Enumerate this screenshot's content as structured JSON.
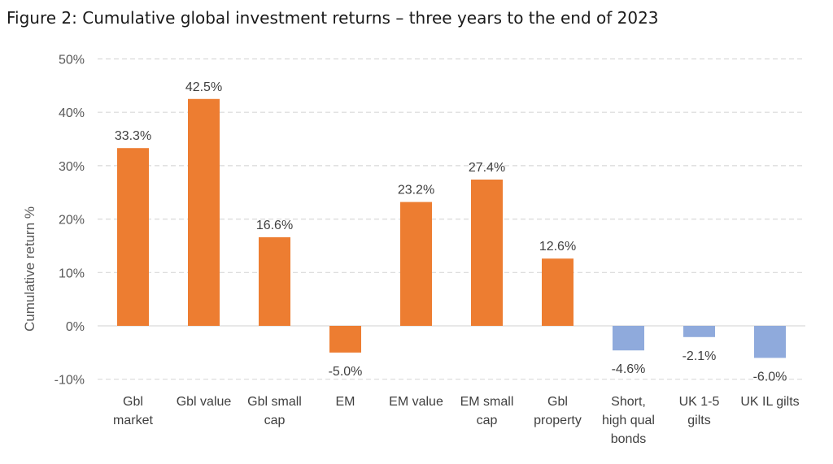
{
  "chart_data": {
    "type": "bar",
    "title": "Figure 2: Cumulative global investment returns – three years to the end of 2023",
    "ylabel": "Cumulative return %",
    "xlabel": "",
    "ylim": [
      -10,
      50
    ],
    "yticks": [
      -10,
      0,
      10,
      20,
      30,
      40,
      50
    ],
    "ytick_labels": [
      "-10%",
      "0%",
      "10%",
      "20%",
      "30%",
      "40%",
      "50%"
    ],
    "grid": true,
    "categories": [
      [
        "Gbl",
        "market"
      ],
      [
        "Gbl value"
      ],
      [
        "Gbl small",
        "cap"
      ],
      [
        "EM"
      ],
      [
        "EM value"
      ],
      [
        "EM small",
        "cap"
      ],
      [
        "Gbl",
        "property"
      ],
      [
        "Short,",
        "high qual",
        "bonds"
      ],
      [
        "UK 1-5",
        "gilts"
      ],
      [
        "UK IL gilts"
      ]
    ],
    "values": [
      33.3,
      42.5,
      16.6,
      -5.0,
      23.2,
      27.4,
      12.6,
      -4.6,
      -2.1,
      -6.0
    ],
    "data_labels": [
      "33.3%",
      "42.5%",
      "16.6%",
      "-5.0%",
      "23.2%",
      "27.4%",
      "12.6%",
      "-4.6%",
      "-2.1%",
      "-6.0%"
    ],
    "colors": [
      "#ed7d31",
      "#ed7d31",
      "#ed7d31",
      "#ed7d31",
      "#ed7d31",
      "#ed7d31",
      "#ed7d31",
      "#8faadc",
      "#8faadc",
      "#8faadc"
    ]
  }
}
